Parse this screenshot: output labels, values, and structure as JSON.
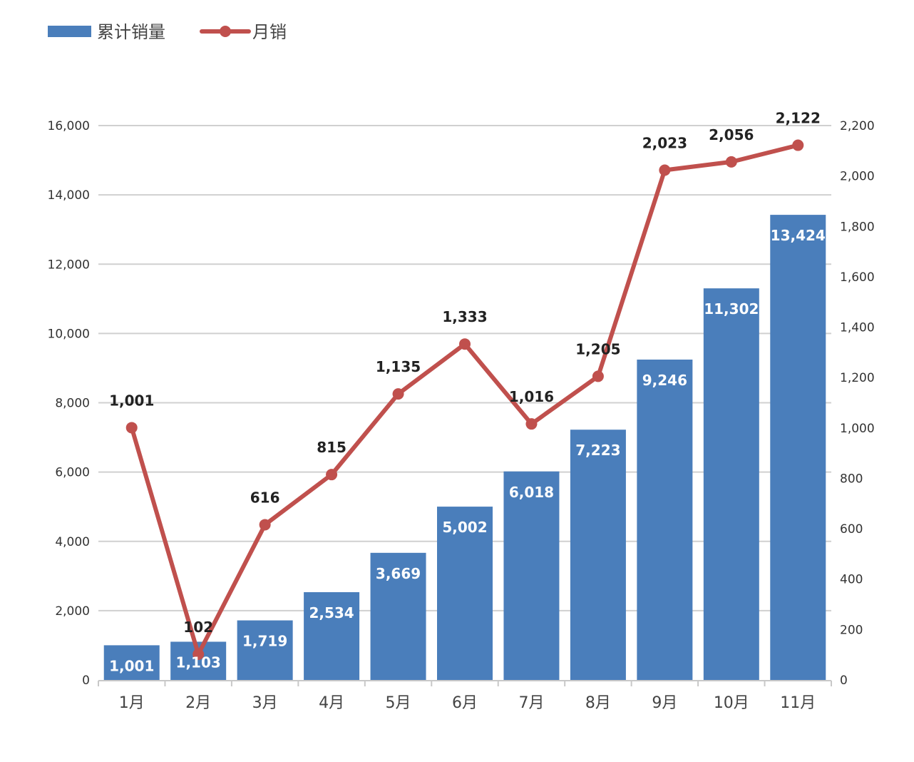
{
  "chart_data": {
    "type": "bar+line",
    "title": "",
    "categories": [
      "1月",
      "2月",
      "3月",
      "4月",
      "5月",
      "6月",
      "7月",
      "8月",
      "9月",
      "10月",
      "11月"
    ],
    "series": [
      {
        "name": "累计销量",
        "type": "bar",
        "axis": "left",
        "color": "#4a7ebb",
        "values": [
          1001,
          1103,
          1719,
          2534,
          3669,
          5002,
          6018,
          7223,
          9246,
          11302,
          13424
        ]
      },
      {
        "name": "月销",
        "type": "line",
        "axis": "right",
        "color": "#c0504d",
        "values": [
          1001,
          102,
          616,
          815,
          1135,
          1333,
          1016,
          1205,
          2023,
          2056,
          2122
        ]
      }
    ],
    "left_axis": {
      "range": [
        0,
        16000
      ],
      "ticks": [
        "0",
        "2,000",
        "4,000",
        "6,000",
        "8,000",
        "10,000",
        "12,000",
        "14,000",
        "16,000"
      ]
    },
    "right_axis": {
      "range": [
        0,
        2200
      ],
      "ticks": [
        "0",
        "200",
        "400",
        "600",
        "800",
        "1,000",
        "1,200",
        "1,400",
        "1,600",
        "1,800",
        "2,000",
        "2,200"
      ]
    },
    "grid": true,
    "legend": "top-left",
    "data_labels": true
  }
}
